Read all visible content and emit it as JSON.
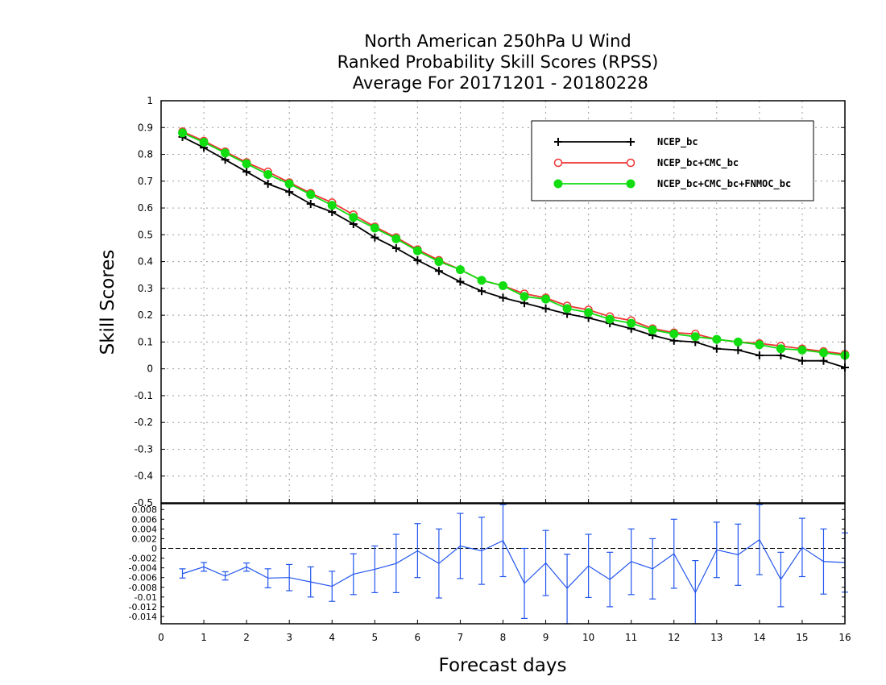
{
  "colors": {
    "ncep_bc": "#000000",
    "ncep_bc_cmc_bc": "#ee3333",
    "ncep_bc_cmc_bc_fnmoc_bc": "#11dd11",
    "difference": "#2255ee"
  },
  "chart_data": [
    {
      "type": "line",
      "title_lines": [
        "North American 250hPa U Wind",
        "Ranked Probability Skill Scores (RPSS)",
        " Average For 20171201 - 20180228"
      ],
      "xlabel": "Forecast days",
      "ylabel": "Skill Scores",
      "xlim": [
        0,
        16
      ],
      "ylim": [
        -0.5,
        1
      ],
      "x_ticks": [
        "0",
        "1",
        "2",
        "3",
        "4",
        "5",
        "6",
        "7",
        "8",
        "9",
        "10",
        "11",
        "12",
        "13",
        "14",
        "15",
        "16"
      ],
      "y_ticks": [
        "1",
        "0.9",
        "0.8",
        "0.7",
        "0.6",
        "0.5",
        "0.4",
        "0.3",
        "0.2",
        "0.1",
        "0",
        "-0.1",
        "-0.2",
        "-0.3",
        "-0.4",
        "-0.5"
      ],
      "grid": true,
      "legend_position": "top-right",
      "x": [
        0.5,
        1,
        1.5,
        2,
        2.5,
        3,
        3.5,
        4,
        4.5,
        5,
        5.5,
        6,
        6.5,
        7,
        7.5,
        8,
        8.5,
        9,
        9.5,
        10,
        10.5,
        11,
        11.5,
        12,
        12.5,
        13,
        13.5,
        14,
        14.5,
        15,
        15.5,
        16
      ],
      "series": [
        {
          "name": "NCEP_bc",
          "marker": "plus",
          "values": [
            0.865,
            0.825,
            0.78,
            0.735,
            0.69,
            0.66,
            0.615,
            0.585,
            0.54,
            0.49,
            0.45,
            0.405,
            0.365,
            0.325,
            0.29,
            0.265,
            0.245,
            0.225,
            0.205,
            0.19,
            0.17,
            0.15,
            0.125,
            0.105,
            0.1,
            0.075,
            0.07,
            0.05,
            0.05,
            0.03,
            0.03,
            0.005
          ]
        },
        {
          "name": "NCEP_bc+CMC_bc",
          "marker": "circle-open",
          "values": [
            0.885,
            0.85,
            0.81,
            0.77,
            0.735,
            0.695,
            0.655,
            0.62,
            0.575,
            0.53,
            0.49,
            0.445,
            0.405,
            0.37,
            0.33,
            0.31,
            0.28,
            0.265,
            0.235,
            0.22,
            0.195,
            0.18,
            0.15,
            0.135,
            0.13,
            0.11,
            0.1,
            0.095,
            0.085,
            0.075,
            0.065,
            0.055
          ]
        },
        {
          "name": "NCEP_bc+CMC_bc+FNMOC_bc",
          "marker": "circle-filled",
          "values": [
            0.88,
            0.845,
            0.805,
            0.765,
            0.725,
            0.69,
            0.65,
            0.61,
            0.565,
            0.525,
            0.485,
            0.44,
            0.4,
            0.37,
            0.33,
            0.31,
            0.27,
            0.26,
            0.225,
            0.21,
            0.185,
            0.17,
            0.145,
            0.13,
            0.12,
            0.11,
            0.1,
            0.09,
            0.075,
            0.07,
            0.06,
            0.05
          ]
        }
      ]
    },
    {
      "type": "line",
      "xlim": [
        0,
        16
      ],
      "ylim": [
        -0.0155,
        0.0092
      ],
      "y_ticks": [
        "0.008",
        "0.006",
        "0.004",
        "0.002",
        "0",
        "-0.002",
        "-0.004",
        "-0.006",
        "-0.008",
        "-0.01",
        "-0.012",
        "-0.014"
      ],
      "x": [
        0.5,
        1,
        1.5,
        2,
        2.5,
        3,
        3.5,
        4,
        4.5,
        5,
        5.5,
        6,
        6.5,
        7,
        7.5,
        8,
        8.5,
        9,
        9.5,
        10,
        10.5,
        11,
        11.5,
        12,
        12.5,
        13,
        13.5,
        14,
        14.5,
        15,
        15.5,
        16
      ],
      "series": [
        {
          "name": "",
          "marker": "error-bar",
          "values": [
            -0.0052,
            -0.0038,
            -0.0057,
            -0.0038,
            -0.0061,
            -0.006,
            -0.0069,
            -0.0078,
            -0.0053,
            -0.0043,
            -0.0031,
            -0.0005,
            -0.0031,
            0.0005,
            -0.0005,
            0.0016,
            -0.0072,
            -0.003,
            -0.0082,
            -0.0036,
            -0.0064,
            -0.0027,
            -0.0042,
            -0.0011,
            -0.0091,
            -0.0003,
            -0.0013,
            0.0018,
            -0.0064,
            0.0002,
            -0.0027,
            -0.0029
          ],
          "upper": [
            -0.0042,
            -0.0029,
            -0.0048,
            -0.003,
            -0.0042,
            -0.0033,
            -0.0038,
            -0.0047,
            -0.0011,
            0.0005,
            0.0029,
            0.0051,
            0.004,
            0.0072,
            0.0064,
            0.009,
            0.0,
            0.0037,
            -0.0012,
            0.0029,
            -0.0008,
            0.004,
            0.002,
            0.006,
            -0.0025,
            0.0054,
            0.005,
            0.009,
            -0.0008,
            0.0062,
            0.004,
            0.0032
          ],
          "lower": [
            -0.0061,
            -0.0047,
            -0.0065,
            -0.0047,
            -0.0081,
            -0.0087,
            -0.01,
            -0.0109,
            -0.0095,
            -0.0091,
            -0.0091,
            -0.006,
            -0.0102,
            -0.0062,
            -0.0074,
            -0.0058,
            -0.0144,
            -0.0097,
            -0.0155,
            -0.0101,
            -0.012,
            -0.0095,
            -0.0104,
            -0.0082,
            -0.0155,
            -0.006,
            -0.0076,
            -0.0054,
            -0.012,
            -0.0058,
            -0.0094,
            -0.009
          ]
        }
      ]
    }
  ]
}
